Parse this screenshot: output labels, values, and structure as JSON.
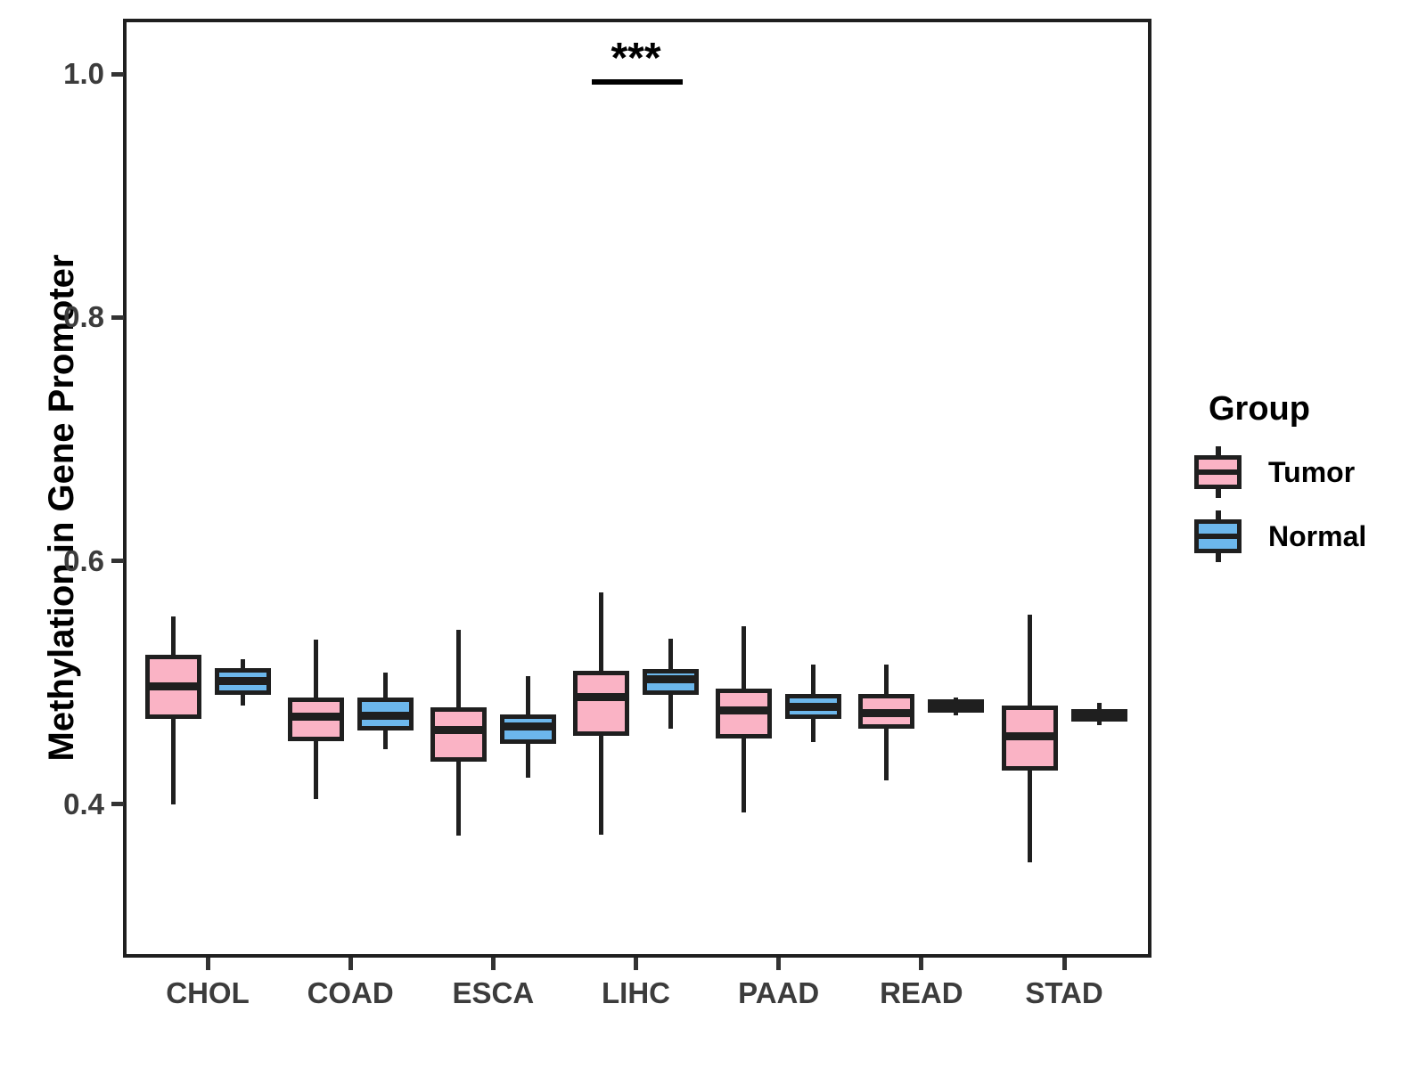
{
  "figure": {
    "background": "#ffffff"
  },
  "colors": {
    "tumor_fill": "#FAB3C5",
    "normal_fill": "#6CB7EC",
    "box_border": "#1F1F1F",
    "axis_text": "#3C3C3C",
    "axis_line": "#333333",
    "annotation": "#000000"
  },
  "legend": {
    "title": "Group",
    "items": [
      {
        "label": "Tumor",
        "fill": "#FAB3C5"
      },
      {
        "label": "Normal",
        "fill": "#6CB7EC"
      }
    ]
  },
  "chart_data": {
    "type": "boxplot",
    "orientation": "vertical",
    "title": "",
    "xlabel": "",
    "ylabel": "Methylation in Gene Promoter",
    "categories": [
      "CHOL",
      "COAD",
      "ESCA",
      "LIHC",
      "PAAD",
      "READ",
      "STAD"
    ],
    "ytick_labels": [
      "0.4",
      "0.6",
      "0.8",
      "1.0"
    ],
    "ytick_values": [
      0.4,
      0.6,
      0.8,
      1.0
    ],
    "ylim": [
      0.276,
      1.044
    ],
    "grid": false,
    "legend_position": "right",
    "series": [
      {
        "name": "Tumor",
        "fill": "#FAB3C5",
        "boxes": [
          {
            "category": "CHOL",
            "low": 0.4,
            "q1": 0.47,
            "median": 0.497,
            "q3": 0.523,
            "high": 0.554
          },
          {
            "category": "COAD",
            "low": 0.404,
            "q1": 0.452,
            "median": 0.472,
            "q3": 0.488,
            "high": 0.535
          },
          {
            "category": "ESCA",
            "low": 0.374,
            "q1": 0.435,
            "median": 0.461,
            "q3": 0.48,
            "high": 0.543
          },
          {
            "category": "LIHC",
            "low": 0.375,
            "q1": 0.456,
            "median": 0.488,
            "q3": 0.51,
            "high": 0.574
          },
          {
            "category": "PAAD",
            "low": 0.393,
            "q1": 0.454,
            "median": 0.477,
            "q3": 0.495,
            "high": 0.546
          },
          {
            "category": "READ",
            "low": 0.42,
            "q1": 0.462,
            "median": 0.475,
            "q3": 0.491,
            "high": 0.515
          },
          {
            "category": "STAD",
            "low": 0.352,
            "q1": 0.428,
            "median": 0.456,
            "q3": 0.481,
            "high": 0.556
          }
        ]
      },
      {
        "name": "Normal",
        "fill": "#6CB7EC",
        "boxes": [
          {
            "category": "CHOL",
            "low": 0.481,
            "q1": 0.49,
            "median": 0.501,
            "q3": 0.512,
            "high": 0.519
          },
          {
            "category": "COAD",
            "low": 0.445,
            "q1": 0.461,
            "median": 0.473,
            "q3": 0.488,
            "high": 0.508
          },
          {
            "category": "ESCA",
            "low": 0.422,
            "q1": 0.45,
            "median": 0.464,
            "q3": 0.474,
            "high": 0.505
          },
          {
            "category": "LIHC",
            "low": 0.462,
            "q1": 0.49,
            "median": 0.503,
            "q3": 0.511,
            "high": 0.536
          },
          {
            "category": "PAAD",
            "low": 0.451,
            "q1": 0.47,
            "median": 0.48,
            "q3": 0.491,
            "high": 0.515
          },
          {
            "category": "READ",
            "low": 0.473,
            "q1": 0.475,
            "median": 0.481,
            "q3": 0.486,
            "high": 0.488
          },
          {
            "category": "STAD",
            "low": 0.465,
            "q1": 0.468,
            "median": 0.473,
            "q3": 0.478,
            "high": 0.483
          }
        ]
      }
    ],
    "annotations": [
      {
        "kind": "significance",
        "text": "***",
        "category": "LIHC",
        "compares": [
          "Tumor",
          "Normal"
        ]
      }
    ]
  }
}
